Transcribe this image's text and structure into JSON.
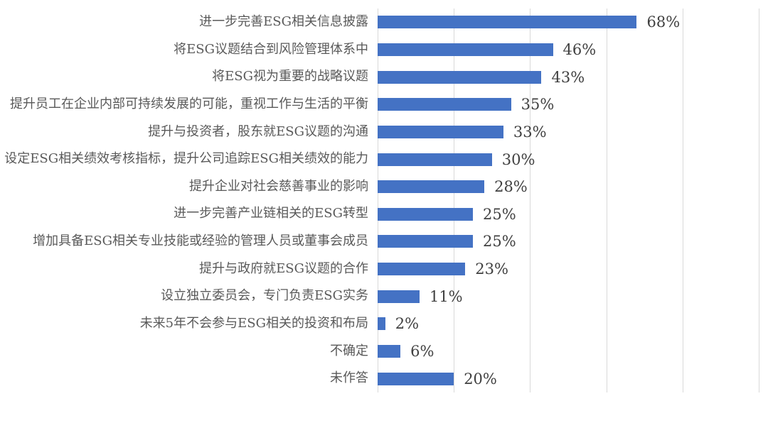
{
  "chart": {
    "background_color": "#ffffff"
  },
  "chart_data": {
    "type": "bar",
    "orientation": "horizontal",
    "title": "",
    "xlabel": "",
    "ylabel": "",
    "legend": "none",
    "grid": "vertical",
    "xlim": [
      0,
      100
    ],
    "gridline_step_percent": 20,
    "bar_color": "#4472C4",
    "gridline_color": "#D9D9D9",
    "category_text_color": "#595959",
    "value_text_color": "#404040",
    "categories": [
      "进一步完善ESG相关信息披露",
      "将ESG议题结合到风险管理体系中",
      "将ESG视为重要的战略议题",
      "提升员工在企业内部可持续发展的可能，重视工作与生活的平衡",
      "提升与投资者，股东就ESG议题的沟通",
      "设定ESG相关绩效考核指标，提升公司追踪ESG相关绩效的能力",
      "提升企业对社会慈善事业的影响",
      "进一步完善产业链相关的ESG转型",
      "增加具备ESG相关专业技能或经验的管理人员或董事会成员",
      "提升与政府就ESG议题的合作",
      "设立独立委员会，专门负责ESG实务",
      "未来5年不会参与ESG相关的投资和布局",
      "不确定",
      "未作答"
    ],
    "values": [
      68,
      46,
      43,
      35,
      33,
      30,
      28,
      25,
      25,
      23,
      11,
      2,
      6,
      20
    ],
    "value_labels": [
      "68%",
      "46%",
      "43%",
      "35%",
      "33%",
      "30%",
      "28%",
      "25%",
      "25%",
      "23%",
      "11%",
      "2%",
      "6%",
      "20%"
    ]
  }
}
